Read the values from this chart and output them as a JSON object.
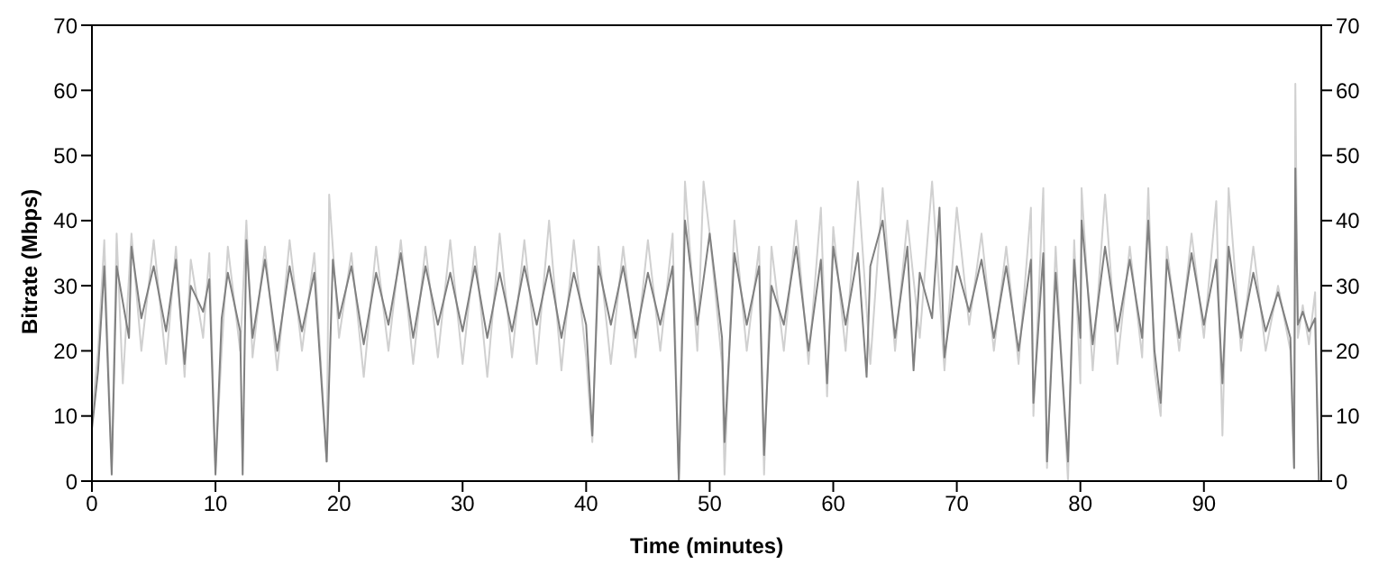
{
  "chart_data": {
    "type": "line",
    "xlabel": "Time (minutes)",
    "ylabel": "Bitrate (Mbps)",
    "xlim": [
      0,
      99.5
    ],
    "xticks": [
      0,
      10,
      20,
      30,
      40,
      50,
      60,
      70,
      80,
      90
    ],
    "ylim": [
      0,
      70
    ],
    "yticks": [
      0,
      10,
      20,
      30,
      40,
      50,
      60,
      70
    ],
    "y2lim": [
      0,
      70
    ],
    "y2ticks": [
      0,
      10,
      20,
      30,
      40,
      50,
      60,
      70
    ],
    "marker": "none",
    "line_style": "solid",
    "series": [
      {
        "color": "#d0d0d0",
        "x": [
          0,
          0.5,
          1,
          1.6,
          2,
          2.5,
          3.2,
          4,
          5,
          6,
          6.8,
          7.5,
          8,
          9,
          9.5,
          10,
          10.5,
          11,
          12,
          12.5,
          13,
          14,
          15,
          16,
          17,
          18,
          19,
          19.2,
          20,
          21,
          22,
          23,
          24,
          25,
          26,
          27,
          28,
          29,
          30,
          31,
          32,
          33,
          34,
          35,
          36,
          37,
          38,
          39,
          40,
          40.5,
          41,
          42,
          43,
          44,
          45,
          46,
          47,
          47.5,
          48,
          49,
          49.5,
          50,
          51,
          51.2,
          52,
          53,
          54,
          54.4,
          55,
          56,
          57,
          58,
          59,
          59.5,
          60,
          61,
          62,
          63,
          64,
          65,
          66,
          67,
          68,
          69,
          70,
          71,
          72,
          73,
          74,
          75,
          76,
          76.2,
          77,
          77.3,
          78,
          79,
          79.5,
          80,
          80.1,
          81,
          82,
          83,
          84,
          85,
          85.5,
          86,
          86.5,
          87,
          88,
          89,
          90,
          91,
          91.5,
          92,
          93,
          94,
          95,
          96,
          97,
          97.3,
          97.4,
          97.6,
          98,
          98.5,
          99,
          99.3
        ],
        "values": [
          10,
          20,
          37,
          2,
          38,
          15,
          38,
          20,
          37,
          18,
          36,
          16,
          34,
          22,
          35,
          2,
          20,
          36,
          20,
          40,
          19,
          36,
          17,
          37,
          20,
          35,
          3,
          44,
          22,
          35,
          16,
          36,
          20,
          37,
          18,
          36,
          19,
          37,
          18,
          36,
          16,
          38,
          19,
          37,
          18,
          40,
          17,
          37,
          19,
          6,
          36,
          18,
          36,
          19,
          37,
          20,
          38,
          0,
          46,
          20,
          46,
          38,
          18,
          1,
          40,
          20,
          36,
          1,
          36,
          20,
          40,
          18,
          42,
          13,
          39,
          20,
          46,
          18,
          45,
          20,
          40,
          22,
          46,
          17,
          42,
          24,
          38,
          20,
          36,
          18,
          42,
          10,
          45,
          2,
          36,
          0,
          37,
          15,
          45,
          17,
          44,
          18,
          36,
          19,
          45,
          17,
          10,
          36,
          20,
          38,
          22,
          43,
          7,
          45,
          20,
          36,
          20,
          30,
          20,
          2,
          61,
          22,
          27,
          21,
          29,
          0
        ]
      },
      {
        "color": "#808080",
        "x": [
          0,
          0.5,
          1,
          1.6,
          2,
          3,
          3.2,
          4,
          5,
          6,
          6.8,
          7.5,
          8,
          9,
          9.5,
          10,
          10.5,
          11,
          12,
          12.2,
          12.5,
          13,
          14,
          15,
          16,
          17,
          18,
          19,
          19.5,
          20,
          21,
          22,
          23,
          24,
          25,
          26,
          27,
          28,
          29,
          30,
          31,
          32,
          33,
          34,
          35,
          36,
          37,
          38,
          39,
          40,
          40.5,
          41,
          42,
          43,
          44,
          45,
          46,
          47,
          47.5,
          48,
          49,
          50,
          51,
          51.2,
          52,
          53,
          54,
          54.4,
          55,
          56,
          57,
          58,
          59,
          59.5,
          60,
          61,
          62,
          62.7,
          63,
          64,
          65,
          66,
          66.5,
          67,
          68,
          68.6,
          69,
          70,
          71,
          72,
          73,
          74,
          75,
          76,
          76.2,
          77,
          77.3,
          78,
          79,
          79.5,
          80,
          80.1,
          81,
          82,
          83,
          84,
          85,
          85.5,
          86,
          86.5,
          87,
          88,
          89,
          90,
          91,
          91.5,
          92,
          93,
          94,
          95,
          96,
          97,
          97.3,
          97.4,
          97.6,
          98,
          98.5,
          99,
          99.3
        ],
        "values": [
          8,
          17,
          33,
          1,
          33,
          22,
          36,
          25,
          33,
          23,
          34,
          18,
          30,
          26,
          31,
          1,
          25,
          32,
          23,
          1,
          37,
          22,
          34,
          20,
          33,
          23,
          32,
          3,
          34,
          25,
          33,
          21,
          32,
          24,
          35,
          22,
          33,
          24,
          32,
          23,
          33,
          22,
          32,
          23,
          33,
          24,
          33,
          22,
          32,
          24,
          7,
          33,
          24,
          33,
          22,
          32,
          24,
          33,
          0,
          40,
          24,
          38,
          22,
          6,
          35,
          24,
          33,
          4,
          30,
          24,
          36,
          20,
          34,
          15,
          36,
          24,
          35,
          16,
          33,
          40,
          22,
          36,
          17,
          32,
          25,
          42,
          19,
          33,
          26,
          34,
          22,
          33,
          20,
          34,
          12,
          35,
          3,
          32,
          3,
          34,
          22,
          40,
          21,
          36,
          23,
          34,
          22,
          40,
          20,
          12,
          34,
          22,
          35,
          24,
          34,
          15,
          36,
          22,
          32,
          23,
          29,
          22,
          2,
          48,
          24,
          26,
          23,
          25,
          0
        ]
      }
    ]
  }
}
